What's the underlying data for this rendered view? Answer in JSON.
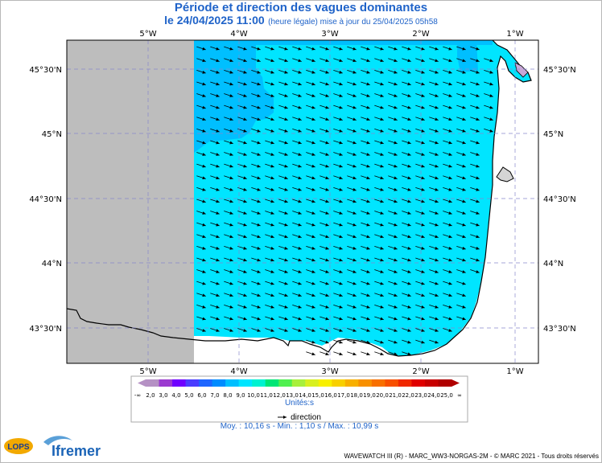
{
  "header": {
    "title": "Période et direction des vagues dominantes",
    "date_time": "le 24/04/2025 11:00",
    "subtitle_note": "(heure légale) mise à jour du 25/04/2025 05h58"
  },
  "map": {
    "top_lon_labels": [
      "5°W",
      "4°W",
      "3°W",
      "2°W",
      "1°W"
    ],
    "bottom_lon_labels": [
      "5°W",
      "4°W",
      "3°W",
      "2°W",
      "1°W"
    ],
    "right_lat_labels": [
      "45°30'N",
      "45°N",
      "44°30'N",
      "44°N",
      "43°30'N"
    ],
    "left_lat_labels": [
      "45°30'N",
      "45°N",
      "44°30'N",
      "44°N",
      "43°30'N"
    ],
    "colors": {
      "no_data": "#bdbdbd",
      "period_10": "#00e5ff",
      "period_9": "#00bfff",
      "land": "#ffffff",
      "coast": "#000000",
      "grid": "#8888cc"
    },
    "arrow_direction": "towards east-south-east"
  },
  "legend": {
    "labels": [
      "-∞",
      "2,0",
      "3,0",
      "4,0",
      "5,0",
      "6,0",
      "7,0",
      "8,0",
      "9,0",
      "10,0",
      "11,0",
      "12,0",
      "13,0",
      "14,0",
      "15,0",
      "16,0",
      "17,0",
      "18,0",
      "19,0",
      "20,0",
      "21,0",
      "22,0",
      "23,0",
      "24,0",
      "25,0",
      "∞"
    ],
    "colors": [
      "#b591c4",
      "#9b3ad0",
      "#6f00ff",
      "#4a3dff",
      "#1e66ff",
      "#008cff",
      "#00bfff",
      "#00e5ff",
      "#00f2d0",
      "#00e676",
      "#50f050",
      "#a8f03c",
      "#d8f020",
      "#f8f000",
      "#f8d000",
      "#f8b000",
      "#f89000",
      "#f87000",
      "#f85000",
      "#f02800",
      "#e00000",
      "#c80000",
      "#b00000"
    ],
    "units": "Unités:s",
    "direction_label": "direction",
    "stats": "Moy. : 10,16 s   -   Min. : 1,10 s / Max. : 10,99 s"
  },
  "footer": {
    "credit": "WAVEWATCH III (R) - MARC_WW3-NORGAS-2M - © MARC 2021 - Tous droits réservés",
    "logo_lops": "LOPS",
    "logo_ifremer": "Ifremer"
  }
}
